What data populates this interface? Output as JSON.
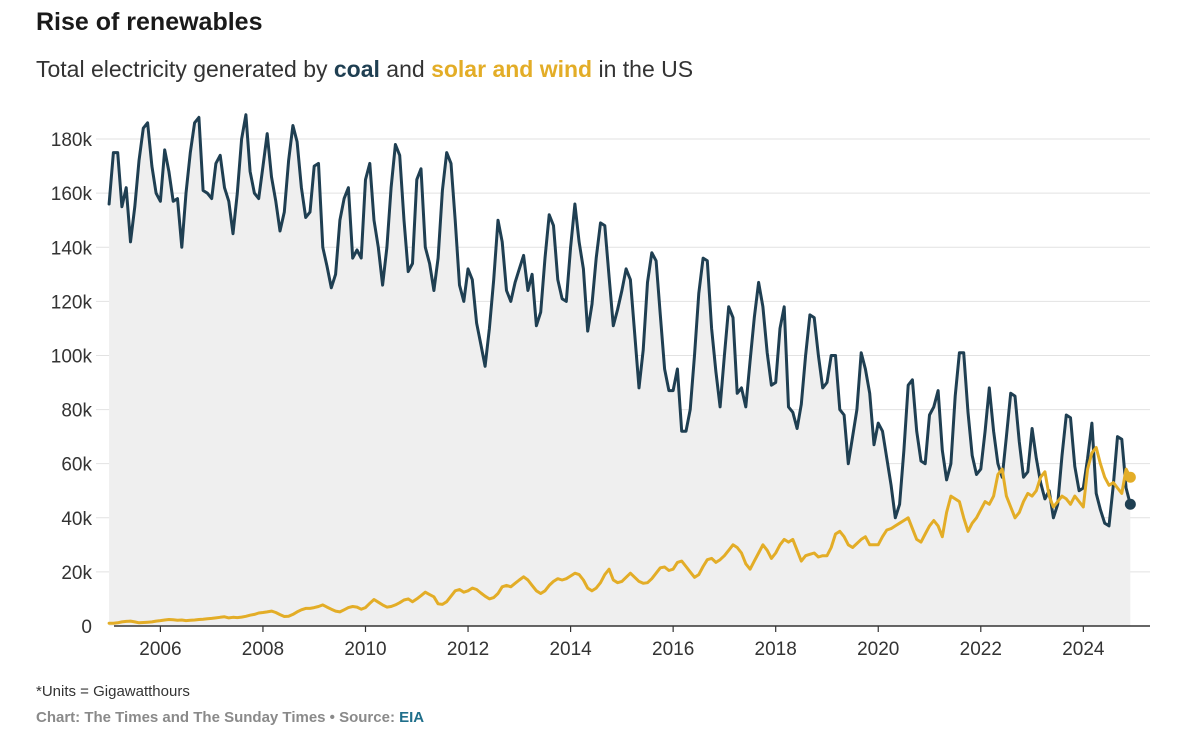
{
  "header": {
    "title": "Rise of renewables",
    "subtitle_prefix": "Total electricity generated by ",
    "subtitle_coal": "coal",
    "subtitle_mid": " and ",
    "subtitle_solar": "solar and wind",
    "subtitle_suffix": " in the US"
  },
  "footer": {
    "units_note": "*Units = Gigawatthours",
    "credit": "Chart: The Times and The Sunday Times • Source: ",
    "source_name": "EIA"
  },
  "colors": {
    "coal": "#1f3f52",
    "solar_wind": "#e3ad27",
    "area_fill": "#efefef",
    "grid": "#e2e2e2",
    "axis": "#333333",
    "tick_text": "#333333"
  },
  "chart_data": {
    "type": "line",
    "title": "Rise of renewables",
    "subtitle": "Total electricity generated by coal and solar and wind in the US",
    "xlabel": "",
    "ylabel": "",
    "x_start": "2005-01",
    "x_end": "2024-12",
    "xlim": [
      2004.9,
      2025.3
    ],
    "ylim": [
      0,
      190000
    ],
    "x_ticks": [
      2006,
      2008,
      2010,
      2012,
      2014,
      2016,
      2018,
      2020,
      2022,
      2024
    ],
    "x_tick_labels": [
      "2006",
      "2008",
      "2010",
      "2012",
      "2014",
      "2016",
      "2018",
      "2020",
      "2022",
      "2024"
    ],
    "y_ticks": [
      0,
      20000,
      40000,
      60000,
      80000,
      100000,
      120000,
      140000,
      160000,
      180000
    ],
    "y_tick_labels": [
      "0",
      "20k",
      "40k",
      "60k",
      "80k",
      "100k",
      "120k",
      "140k",
      "160k",
      "180k"
    ],
    "grid": "horizontal",
    "legend": "none",
    "series": [
      {
        "name": "coal",
        "color": "#1f3f52",
        "filled": true,
        "values": [
          156000,
          175000,
          175000,
          155000,
          162000,
          142000,
          155000,
          172000,
          184000,
          186000,
          170000,
          160000,
          157000,
          176000,
          168000,
          157000,
          158000,
          140000,
          160000,
          175000,
          186000,
          188000,
          161000,
          160000,
          158000,
          171000,
          174000,
          162000,
          157000,
          145000,
          160000,
          180000,
          189000,
          168000,
          160000,
          158000,
          170000,
          182000,
          166000,
          157000,
          146000,
          153000,
          172000,
          185000,
          179000,
          162000,
          151000,
          153000,
          170000,
          171000,
          140000,
          133000,
          125000,
          130000,
          150000,
          158000,
          162000,
          136000,
          139000,
          136000,
          165000,
          171000,
          150000,
          140000,
          126000,
          140000,
          162000,
          178000,
          174000,
          150000,
          131000,
          134000,
          165000,
          169000,
          140000,
          134000,
          124000,
          136000,
          161000,
          175000,
          171000,
          150000,
          126000,
          120000,
          132000,
          128000,
          112000,
          104000,
          96000,
          110000,
          128000,
          150000,
          142000,
          124000,
          120000,
          127000,
          132000,
          137000,
          124000,
          130000,
          111000,
          116000,
          136000,
          152000,
          148000,
          128000,
          121000,
          120000,
          140000,
          156000,
          142000,
          132000,
          109000,
          119000,
          136000,
          149000,
          148000,
          129000,
          111000,
          117000,
          124000,
          132000,
          128000,
          108000,
          88000,
          102000,
          127000,
          138000,
          135000,
          115000,
          95000,
          87000,
          87000,
          95000,
          72000,
          72000,
          80000,
          100000,
          123000,
          136000,
          135000,
          110000,
          94000,
          81000,
          100000,
          118000,
          114000,
          86000,
          88000,
          81000,
          98000,
          114000,
          127000,
          118000,
          101000,
          89000,
          90000,
          110000,
          118000,
          81000,
          79000,
          73000,
          82000,
          100000,
          115000,
          114000,
          100000,
          88000,
          90000,
          100000,
          100000,
          80000,
          78000,
          60000,
          70000,
          80000,
          101000,
          95000,
          86000,
          67000,
          75000,
          72000,
          62000,
          52000,
          40000,
          45000,
          65000,
          89000,
          91000,
          72000,
          61000,
          60000,
          78000,
          81000,
          87000,
          65000,
          54000,
          60000,
          85000,
          101000,
          101000,
          79000,
          63000,
          56000,
          58000,
          72000,
          88000,
          72000,
          60000,
          55000,
          70000,
          86000,
          85000,
          68000,
          55000,
          57000,
          73000,
          62000,
          53000,
          47000,
          50000,
          40000,
          45000,
          63000,
          78000,
          77000,
          59000,
          50000,
          51000,
          62000,
          75000,
          49000,
          43000,
          38000,
          37000,
          52000,
          70000,
          69000,
          51000,
          45000
        ]
      },
      {
        "name": "solar and wind",
        "color": "#e3ad27",
        "filled": false,
        "values": [
          1000,
          1000,
          1200,
          1500,
          1700,
          1800,
          1500,
          1200,
          1300,
          1400,
          1500,
          1800,
          2000,
          2200,
          2400,
          2300,
          2100,
          2200,
          2000,
          2100,
          2200,
          2400,
          2500,
          2700,
          2800,
          3000,
          3200,
          3400,
          3000,
          3200,
          3100,
          3300,
          3600,
          4000,
          4300,
          4800,
          5000,
          5200,
          5500,
          5000,
          4200,
          3500,
          3600,
          4300,
          5200,
          6000,
          6500,
          6500,
          6800,
          7200,
          7800,
          7000,
          6200,
          5500,
          5200,
          6000,
          6800,
          7200,
          7000,
          6200,
          6800,
          8400,
          9800,
          8800,
          7800,
          7000,
          7200,
          7800,
          8600,
          9600,
          10000,
          9000,
          10000,
          11200,
          12500,
          11600,
          10800,
          8200,
          8000,
          9000,
          11000,
          13000,
          13500,
          12500,
          13000,
          14000,
          13500,
          12200,
          11000,
          10000,
          10500,
          12000,
          14500,
          15000,
          14500,
          15800,
          17000,
          18200,
          17000,
          15000,
          13000,
          12000,
          13000,
          15000,
          16500,
          17500,
          17000,
          17500,
          18500,
          19500,
          19000,
          17000,
          14000,
          13000,
          14000,
          16000,
          19000,
          21000,
          17000,
          16000,
          16500,
          18000,
          19500,
          18000,
          16500,
          15800,
          16000,
          17500,
          19500,
          21500,
          21800,
          20500,
          21000,
          23500,
          24000,
          22000,
          20000,
          18000,
          19000,
          22000,
          24500,
          25000,
          23500,
          24500,
          26000,
          28000,
          30000,
          29000,
          27000,
          23000,
          21000,
          24000,
          27000,
          30000,
          28000,
          25000,
          27000,
          30000,
          32000,
          31000,
          32000,
          28000,
          24000,
          26000,
          26500,
          27000,
          25500,
          26000,
          26000,
          29000,
          34000,
          35000,
          33000,
          30000,
          29000,
          30500,
          32000,
          33000,
          30000,
          30000,
          30000,
          33000,
          35500,
          36000,
          37000,
          38000,
          39000,
          40000,
          36000,
          32000,
          31000,
          34000,
          37000,
          39000,
          37000,
          33000,
          42000,
          48000,
          47000,
          46000,
          40000,
          35000,
          38000,
          40000,
          43000,
          46000,
          45000,
          48000,
          56000,
          58000,
          48000,
          44000,
          40000,
          42000,
          46000,
          49000,
          48000,
          50000,
          55000,
          57000,
          48000,
          44000,
          46000,
          48000,
          47000,
          45000,
          48000,
          46000,
          44000,
          58000,
          64000,
          66000,
          60000,
          55000,
          52000,
          53000,
          51000,
          49000,
          58000,
          55000
        ]
      }
    ]
  }
}
